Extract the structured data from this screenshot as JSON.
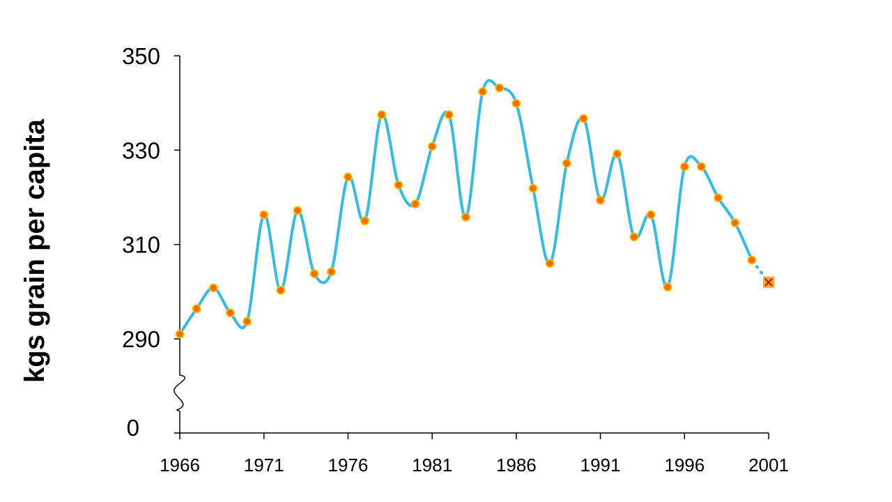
{
  "chart_data": {
    "type": "line",
    "title": "",
    "xlabel": "",
    "ylabel": "kgs grain per capita",
    "xlim": [
      1966,
      2001
    ],
    "ylim": [
      290,
      350
    ],
    "y_axis_break": true,
    "y_break_baseline_label": "0",
    "yticks": [
      290,
      310,
      330,
      350
    ],
    "xticks": [
      1966,
      1971,
      1976,
      1981,
      1986,
      1991,
      1996,
      2001
    ],
    "grid": false,
    "line_color": "#33bbe8",
    "marker_fill": "#ff6a00",
    "marker_edge": "#e8c600",
    "final_marker_fill": "#f5a623",
    "final_marker_x_color": "#cc0000",
    "series": [
      {
        "x": [
          1966,
          1967,
          1968,
          1969,
          1970,
          1971,
          1972,
          1973,
          1974,
          1975,
          1976,
          1977,
          1978,
          1979,
          1980,
          1981,
          1982,
          1983,
          1984,
          1985,
          1986,
          1987,
          1988,
          1989,
          1990,
          1991,
          1992,
          1993,
          1994,
          1995,
          1996,
          1997,
          1998,
          1999,
          2000
        ],
        "values": [
          291,
          296.4,
          300.8,
          295.5,
          293.7,
          316.3,
          300.3,
          317.2,
          303.8,
          304.2,
          324.3,
          315.0,
          337.5,
          322.6,
          318.6,
          330.8,
          337.5,
          315.8,
          342.4,
          343.2,
          339.9,
          321.9,
          306.0,
          327.2,
          336.7,
          319.4,
          329.2,
          311.6,
          316.3,
          301.0,
          326.5,
          326.5,
          319.9,
          314.6,
          306.7
        ]
      }
    ],
    "projection": {
      "x": 2001,
      "value": 302.0
    }
  }
}
